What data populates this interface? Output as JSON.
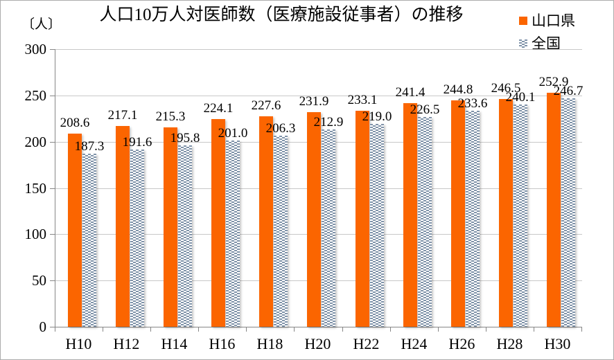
{
  "chart_data": {
    "type": "bar",
    "title": "人口10万人対医師数（医療施設従事者）の推移",
    "unit_label": "〔人〕",
    "categories": [
      "H10",
      "H12",
      "H14",
      "H16",
      "H18",
      "H20",
      "H22",
      "H24",
      "H26",
      "H28",
      "H30"
    ],
    "series": [
      {
        "name": "山口県",
        "color": "#FB6500",
        "fill": "solid",
        "values": [
          208.6,
          217.1,
          215.3,
          224.1,
          227.6,
          231.9,
          233.1,
          241.4,
          244.8,
          246.5,
          252.9
        ]
      },
      {
        "name": "全国",
        "color": "#8093A9",
        "fill": "checker-pattern",
        "values": [
          187.3,
          191.6,
          195.8,
          201.0,
          206.3,
          212.9,
          219.0,
          226.5,
          233.6,
          240.1,
          246.7
        ]
      }
    ],
    "ylabel": "",
    "xlabel": "",
    "ylim": [
      0,
      300
    ],
    "ytick_step": 50,
    "yticks": [
      0,
      50,
      100,
      150,
      200,
      250,
      300
    ],
    "grid": "horizontal",
    "data_labels": "outside-end, one decimal place",
    "legend_position": "top-right"
  }
}
